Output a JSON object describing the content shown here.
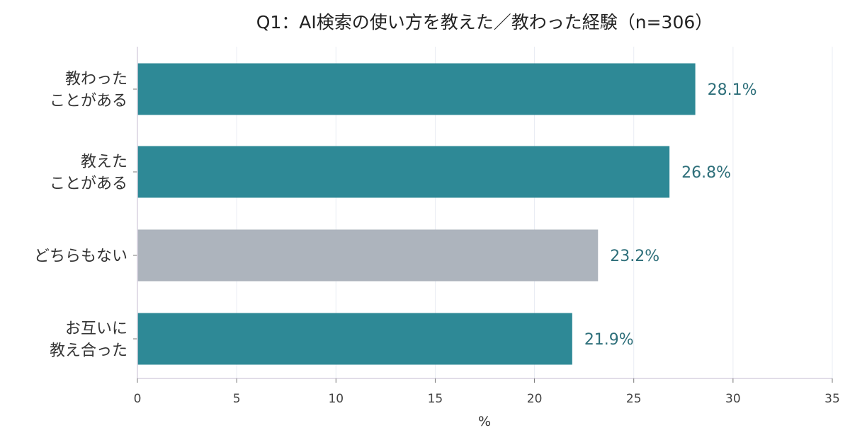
{
  "chart_data": {
    "type": "bar",
    "orientation": "horizontal",
    "title": "Q1：AI検索の使い方を教えた／教わった経験（n=306）",
    "xlabel": "%",
    "ylabel": "",
    "xlim": [
      0,
      35
    ],
    "xticks": [
      0,
      5,
      10,
      15,
      20,
      25,
      30,
      35
    ],
    "grid": "vertical",
    "categories": [
      [
        "教わった",
        "ことがある"
      ],
      [
        "教えた",
        "ことがある"
      ],
      [
        "どちらもない"
      ],
      [
        "お互いに",
        "教え合った"
      ]
    ],
    "values": [
      28.1,
      26.8,
      23.2,
      21.9
    ],
    "value_labels": [
      "28.1%",
      "26.8%",
      "23.2%",
      "21.9%"
    ],
    "colors": [
      "#2e8996",
      "#2e8996",
      "#adb4bd",
      "#2e8996"
    ],
    "label_color": "#2e6f7a"
  }
}
